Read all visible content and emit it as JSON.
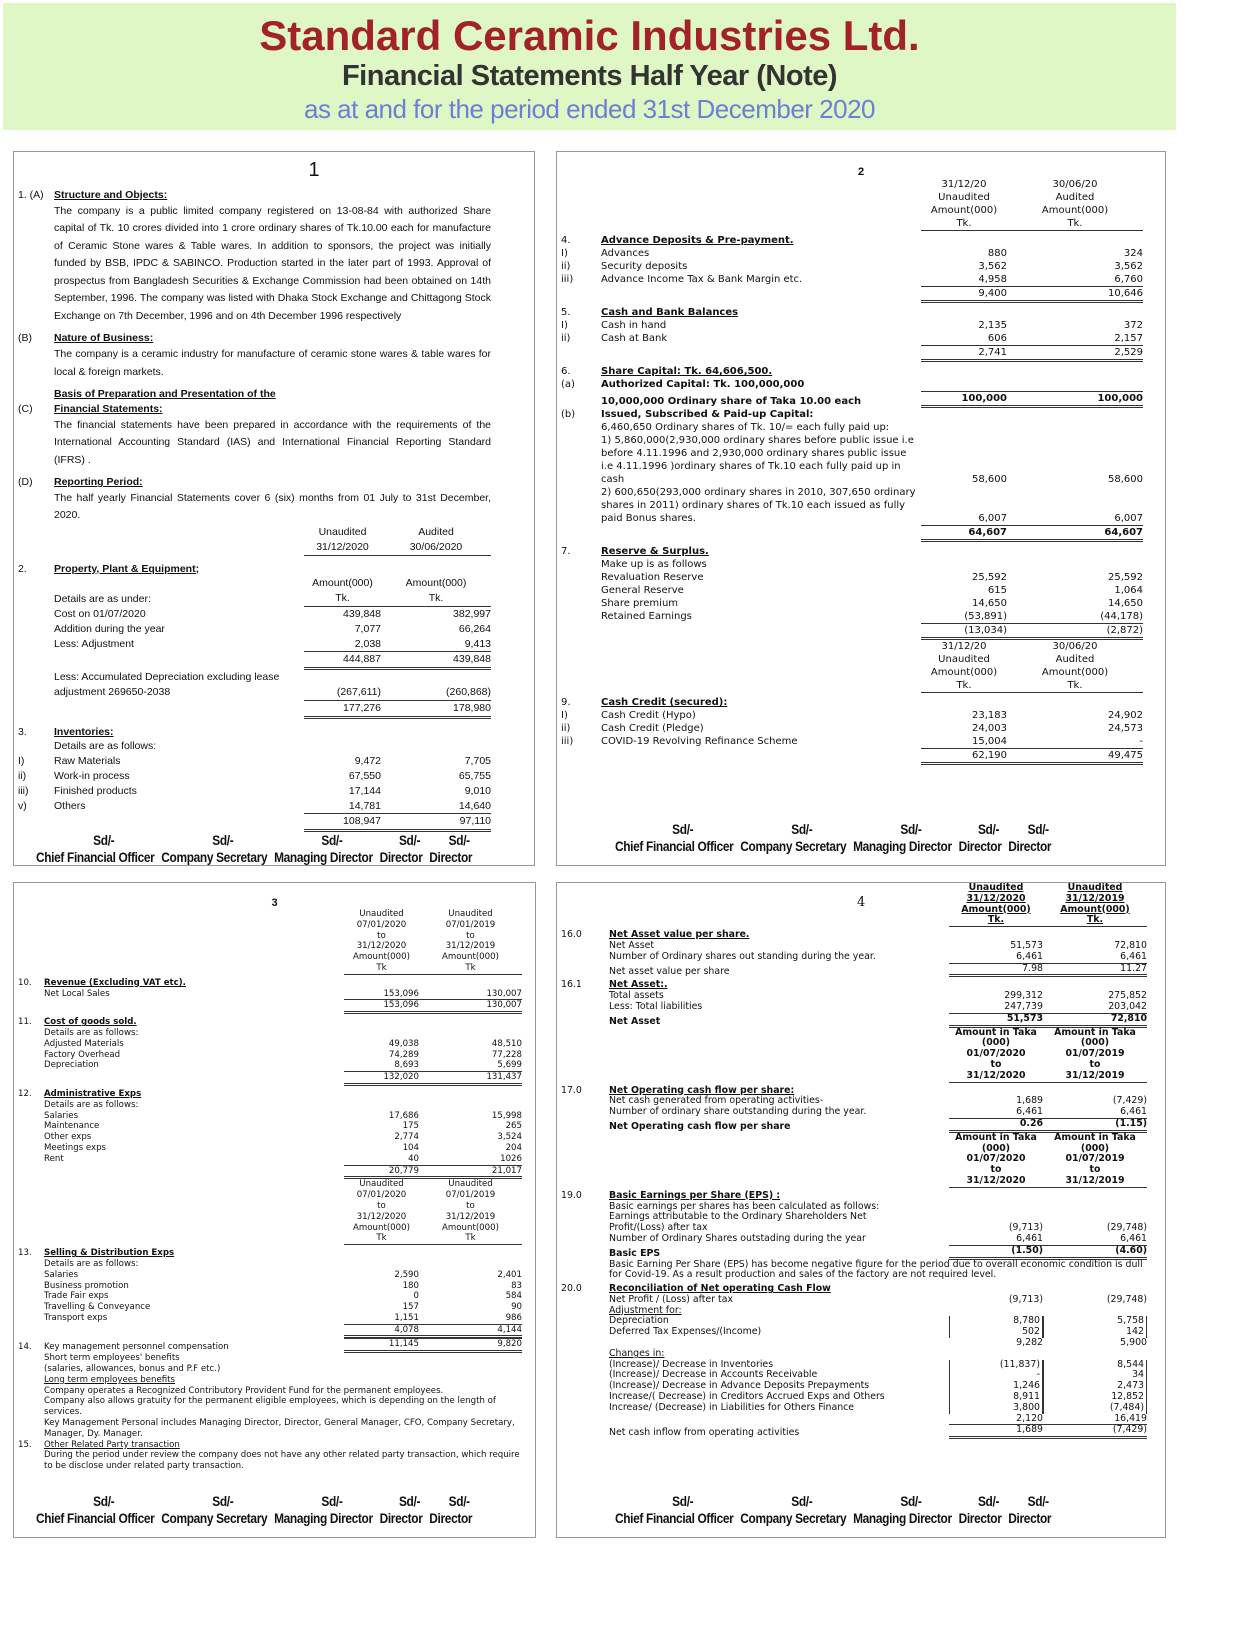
{
  "header": {
    "company": "Standard Ceramic Industries Ltd.",
    "title": "Financial Statements Half Year (Note)",
    "period": "as at and for the period ended 31st December 2020"
  },
  "colors": {
    "header_bg": "#dff7c4",
    "company": "#a3222a",
    "period": "#6b7fd7"
  },
  "signatures": {
    "sd": "Sd/-",
    "titles": [
      "Chief Financial Officer",
      "Company Secretary",
      "Managing Director",
      "Director",
      "Director"
    ]
  },
  "panels": [
    {
      "page": "1",
      "rows": [
        {
          "k": "head",
          "n": "1.  (A)",
          "t": "Structure and Objects:"
        },
        {
          "k": "para",
          "t": "The company is a public limited company registered on 13-08-84 with authorized Share capital of Tk. 10 crores divided into 1 crore ordinary shares of Tk.10.00 each for manufacture of Ceramic Stone wares & Table wares. In addition to sponsors, the project was initially funded by BSB, IPDC & SABINCO. Production started in the later part of 1993. Approval of prospectus from Bangladesh Securities & Exchange Commission had been obtained on 14th September, 1996. The company was listed with Dhaka Stock Exchange and Chittagong Stock Exchange on 7th December, 1996 and on 4th December 1996 respectively"
        },
        {
          "k": "head",
          "n": "     (B)",
          "t": "Nature of Business:"
        },
        {
          "k": "para",
          "t": "The company is a ceramic industry for manufacture of ceramic stone wares & table wares for local & foreign markets."
        },
        {
          "k": "head",
          "n": "     (C)",
          "t": "Basis of Preparation and Presentation  of the Financial Statements:"
        },
        {
          "k": "para",
          "t": "The financial statements have been prepared in accordance with the requirements of the International Accounting Standard (IAS) and International Financial Reporting Standard (IFRS) ."
        },
        {
          "k": "head",
          "n": "     (D)",
          "t": "Reporting Period:"
        },
        {
          "k": "para",
          "t": "The  half yearly Financial Statements cover 6 (six) months from 01 July to 31st  December, 2020."
        },
        {
          "k": "colhead",
          "a": [
            "Unaudited",
            "31/12/2020"
          ],
          "b": [
            "Audited",
            "30/06/2020"
          ]
        },
        {
          "k": "head",
          "n": "2.",
          "t": "Property, Plant & Equipment;"
        },
        {
          "k": "colhead",
          "t": "Details are as under:",
          "a": [
            "Amount(000)",
            "Tk."
          ],
          "b": [
            "Amount(000)",
            "Tk."
          ]
        },
        {
          "t": "Cost on 01/07/2020",
          "a": "439,848",
          "b": "382,997"
        },
        {
          "t": "Addition during the year",
          "a": "7,077",
          "b": "66,264"
        },
        {
          "t": "Less: Adjustment",
          "a": "2,038",
          "b": "9,413"
        },
        {
          "k": "total",
          "a": "444,887",
          "b": "439,848"
        },
        {
          "t": "Less: Accumulated Depreciation                   excluding lease adjustment  269650-2038",
          "a": "(267,611)",
          "b": "(260,868)"
        },
        {
          "k": "total",
          "a": "177,276",
          "b": "178,980"
        },
        {
          "k": "head",
          "n": "3.",
          "t": "Inventories: "
        },
        {
          "t": "Details are as follows:"
        },
        {
          "n": "I)",
          "t": "Raw Materials",
          "a": "9,472",
          "b": "7,705"
        },
        {
          "n": "ii)",
          "t": "Work-in process",
          "a": "67,550",
          "b": "65,755"
        },
        {
          "n": "iii)",
          "t": "Finished products",
          "a": "17,144",
          "b": "9,010"
        },
        {
          "n": "v)",
          "t": "Others",
          "a": "14,781",
          "b": "14,640"
        },
        {
          "k": "total",
          "a": "108,947",
          "b": "97,110"
        }
      ]
    },
    {
      "page": "2",
      "rows": [
        {
          "k": "colhead",
          "a": [
            "31/12/20",
            "Unaudited",
            "Amount(000)",
            "Tk."
          ],
          "b": [
            "30/06/20",
            "Audited",
            "Amount(000)",
            "Tk."
          ]
        },
        {
          "k": "head",
          "n": "4.",
          "t": "Advance Deposits & Pre-payment."
        },
        {
          "n": "I)",
          "t": "Advances",
          "a": "880",
          "b": "324"
        },
        {
          "n": "ii)",
          "t": "Security deposits",
          "a": "3,562",
          "b": "3,562"
        },
        {
          "n": "iii)",
          "t": "Advance Income Tax & Bank Margin etc.",
          "a": "4,958",
          "b": "6,760"
        },
        {
          "k": "total",
          "a": "9,400",
          "b": "10,646"
        },
        {
          "k": "head",
          "n": "5.",
          "t": "Cash and Bank Balances"
        },
        {
          "n": "I)",
          "t": "Cash in hand",
          "a": "2,135",
          "b": "372"
        },
        {
          "n": "ii)",
          "t": "Cash at Bank",
          "a": "606",
          "b": "2,157"
        },
        {
          "k": "total",
          "a": "2,741",
          "b": "2,529"
        },
        {
          "k": "head",
          "n": "6.",
          "t": "Share Capital: Tk. 64,606,500."
        },
        {
          "k": "bold",
          "n": "  (a)",
          "t": "Authorized Capital: Tk. 100,000,000"
        },
        {
          "k": "bold total",
          "t": "10,000,000 Ordinary share of Taka 10.00 each",
          "a": "100,000",
          "b": "100,000"
        },
        {
          "k": "bold",
          "n": "  (b)",
          "t": "Issued, Subscribed & Paid-up Capital:"
        },
        {
          "t": "6,460,650 Ordinary shares of Tk. 10/= each fully paid up:"
        },
        {
          "t": "1) 5,860,000(2,930,000 ordinary shares before public issue i.e before 4.11.1996 and 2,930,000 ordinary shares public issue i.e 4.11.1996 )ordinary shares of Tk.10 each fully paid up in cash",
          "a": "58,600",
          "b": "58,600"
        },
        {
          "t": "2) 600,650(293,000 ordinary shares in 2010, 307,650 ordinary shares in 2011) ordinary shares of Tk.10 each issued as fully paid Bonus shares.",
          "a": "6,007",
          "b": "6,007"
        },
        {
          "k": "bold total",
          "a": "64,607",
          "b": "64,607"
        },
        {
          "k": "head",
          "n": "7.",
          "t": "Reserve & Surplus."
        },
        {
          "t": "Make up is as follows"
        },
        {
          "t": "Revaluation Reserve",
          "a": "25,592",
          "b": "25,592"
        },
        {
          "t": "General Reserve",
          "a": "615",
          "b": "1,064"
        },
        {
          "t": "Share premium",
          "a": "14,650",
          "b": "14,650"
        },
        {
          "t": "Retained Earnings",
          "a": "(53,891)",
          "b": "(44,178)"
        },
        {
          "k": "total",
          "a": "(13,034)",
          "b": "(2,872)"
        },
        {
          "k": "colhead",
          "a": [
            "31/12/20",
            "Unaudited",
            "Amount(000)",
            "Tk."
          ],
          "b": [
            "30/06/20",
            "Audited",
            "Amount(000)",
            "Tk."
          ]
        },
        {
          "k": "head",
          "n": "9.",
          "t": "Cash Credit (secured):"
        },
        {
          "n": "I)",
          "t": "Cash Credit (Hypo)",
          "a": "23,183",
          "b": "24,902"
        },
        {
          "n": "ii)",
          "t": "Cash Credit (Pledge)",
          "a": "24,003",
          "b": "24,573"
        },
        {
          "n": "iii)",
          "t": "COVID-19 Revolving Refinance Scheme",
          "a": "15,004",
          "b": "-"
        },
        {
          "k": "total",
          "a": "62,190",
          "b": "49,475"
        }
      ]
    },
    {
      "page": "3",
      "rows": [
        {
          "k": "colhead",
          "a": [
            "Unaudited",
            "07/01/2020",
            "to",
            "31/12/2020",
            "Amount(000)",
            "Tk"
          ],
          "b": [
            "Unaudited",
            "07/01/2019",
            "to",
            "31/12/2019",
            "Amount(000)",
            "Tk"
          ]
        },
        {
          "k": "head",
          "n": "10.",
          "t": "Revenue (Excluding VAT etc)."
        },
        {
          "t": "Net Local Sales",
          "a": "153,096",
          "b": "130,007"
        },
        {
          "k": "total",
          "a": "153,096",
          "b": "130,007"
        },
        {
          "k": "head",
          "n": "11.",
          "t": "Cost of goods sold."
        },
        {
          "t": "Details are as follows:"
        },
        {
          "t": "Adjusted Materials",
          "a": "49,038",
          "b": "48,510"
        },
        {
          "t": "Factory Overhead",
          "a": "74,289",
          "b": "77,228"
        },
        {
          "t": "Depreciation",
          "a": "8,693",
          "b": "5,699"
        },
        {
          "k": "total",
          "a": "132,020",
          "b": "131,437"
        },
        {
          "k": "head",
          "n": "12.",
          "t": "Administrative Exps"
        },
        {
          "t": "Details are as follows:"
        },
        {
          "t": "Salaries",
          "a": "17,686",
          "b": "15,998"
        },
        {
          "t": "Maintenance",
          "a": "175",
          "b": "265"
        },
        {
          "t": "Other exps",
          "a": "2,774",
          "b": "3,524"
        },
        {
          "t": "Meetings exps",
          "a": "104",
          "b": "204"
        },
        {
          "t": "Rent",
          "a": "40",
          "b": "1026"
        },
        {
          "k": "total",
          "a": "20,779",
          "b": "21,017"
        },
        {
          "k": "colhead",
          "a": [
            "Unaudited",
            "07/01/2020",
            "to",
            "31/12/2020",
            "Amount(000)",
            "Tk"
          ],
          "b": [
            "Unaudited",
            "07/01/2019",
            "to",
            "31/12/2019",
            "Amount(000)",
            "Tk"
          ]
        },
        {
          "k": "head",
          "n": "13.",
          "t": "Selling & Distribution  Exps"
        },
        {
          "t": "Details are as follows:"
        },
        {
          "t": "Salaries",
          "a": "2,590",
          "b": "2,401"
        },
        {
          "t": "Business promotion",
          "a": "180",
          "b": "83"
        },
        {
          "t": "Trade Fair exps",
          "a": "0",
          "b": "584"
        },
        {
          "t": "Travelling & Conveyance",
          "a": "157",
          "b": "90"
        },
        {
          "t": "Transport exps",
          "a": "1,151",
          "b": "986"
        },
        {
          "k": "total",
          "a": "4,078",
          "b": "4,144"
        },
        {
          "k": "total",
          "n": "14.",
          "t": "Key management personnel compensation",
          "a": "11,145",
          "b": "9,820"
        },
        {
          "t": "Short term employees' benefits"
        },
        {
          "t": "(salaries, allowances, bonus and P.F etc.)"
        },
        {
          "k": "ul",
          "t": "Long term employees benefits"
        },
        {
          "k": "para",
          "t": "Company operates a Recognized Contributory Provident Fund for the permanent employees."
        },
        {
          "k": "para",
          "t": "Company also allows gratuity for the permanent eligible employees, which is depending on the length of services."
        },
        {
          "k": "para",
          "t": "Key Management Personal includes Managing Director, Director, General Manager, CFO, Company Secretary, Manager, Dy. Manager."
        },
        {
          "k": "ul",
          "n": "15.",
          "t": "Other Related Party transaction"
        },
        {
          "k": "para",
          "t": "During the period under review the company does not have any other related party transaction, which require to be disclose under related party transaction."
        }
      ]
    },
    {
      "page": "4",
      "rows": [
        {
          "k": "colhead u",
          "a": [
            "Unaudited",
            "31/12/2020",
            "Amount(000)",
            "Tk."
          ],
          "b": [
            "Unaudited",
            "31/12/2019",
            "Amount(000)",
            "Tk."
          ]
        },
        {
          "k": "head",
          "n": "16.0",
          "t": "Net Asset value per share."
        },
        {
          "t": "Net Asset",
          "a": "51,573",
          "b": "72,810"
        },
        {
          "t": "Number of Ordinary shares out standing during the year.",
          "a": "6,461",
          "b": "6,461"
        },
        {
          "k": "total",
          "t": "Net asset value per share",
          "a": "7.98",
          "b": "11.27"
        },
        {
          "k": "head",
          "n": "16.1",
          "t": "Net Asset:."
        },
        {
          "t": "Total assets",
          "a": "299,312",
          "b": "275,852"
        },
        {
          "t": "Less: Total liabilities",
          "a": "247,739",
          "b": "203,042"
        },
        {
          "k": "bold total",
          "t": "Net Asset",
          "a": "51,573",
          "b": "72,810"
        },
        {
          "k": "colhead",
          "a": [
            "Amount in Taka",
            "(000)",
            "01/07/2020",
            "to",
            "31/12/2020"
          ],
          "b": [
            "Amount in Taka",
            "(000)",
            "01/07/2019",
            "to",
            "31/12/2019"
          ]
        },
        {
          "k": "head",
          "n": "17.0",
          "t": "Net Operating cash flow per share:"
        },
        {
          "t": "Net cash generated from operating activities-",
          "a": "1,689",
          "b": "(7,429)"
        },
        {
          "t": "Number of ordinary share outstanding during the year.",
          "a": "6,461",
          "b": "6,461"
        },
        {
          "k": "bold total",
          "t": "Net Operating cash flow per share",
          "a": "0.26",
          "b": "(1.15)"
        },
        {
          "k": "colhead",
          "a": [
            "Amount in Taka",
            "(000)",
            "01/07/2020",
            "to",
            "31/12/2020"
          ],
          "b": [
            "Amount in Taka",
            "(000)",
            "01/07/2019",
            "to",
            "31/12/2019"
          ]
        },
        {
          "k": "head",
          "n": "19.0",
          "t": "Basic Earnings per Share (EPS) :"
        },
        {
          "t": "Basic earnings per shares has been calculated as follows:"
        },
        {
          "t": "Earnings attributable to the Ordinary Shareholders Net"
        },
        {
          "t": "Profit/(Loss) after tax",
          "a": "(9,713)",
          "b": "(29,748)"
        },
        {
          "t": "Number of Ordinary Shares outstading during the year",
          "a": "6,461",
          "b": "6,461"
        },
        {
          "k": "bold total",
          "t": "Basic EPS",
          "a": "(1.50)",
          "b": "(4.60)"
        },
        {
          "k": "para",
          "t": "Basic Earning Per Share (EPS)  has become negative figure for the period due to overall economic condition  is dull  for Covid-19. As a result production  and sales of the factory  are not required level."
        },
        {
          "k": "head",
          "n": "20.0",
          "t": "Reconciliation of Net operating Cash Flow"
        },
        {
          "t": "Net Profit / (Loss) after tax",
          "a": "(9,713)",
          "b": "(29,748)"
        },
        {
          "k": "ul",
          "t": "Adjustment for:"
        },
        {
          "k": "boxed",
          "t": "Depreciation",
          "a": "8,780",
          "b": "5,758"
        },
        {
          "k": "boxed",
          "t": "Deferred Tax Expenses/(Income)",
          "a": "502",
          "b": "142"
        },
        {
          "t": "",
          "a": "9,282",
          "b": "5,900"
        },
        {
          "k": "ul",
          "t": "Changes in:"
        },
        {
          "k": "boxed",
          "t": "(Increase)/ Decrease in Inventories",
          "a": "(11,837)",
          "b": "8,544"
        },
        {
          "k": "boxed",
          "t": "(Increase)/ Decrease in Accounts Receivable",
          "a": "-",
          "b": "34"
        },
        {
          "k": "boxed",
          "t": "(Increase)/ Decrease in Advance Deposits Prepayments",
          "a": "1,246",
          "b": "2,473"
        },
        {
          "k": "boxed",
          "t": "Increase/( Decrease) in Creditors Accrued Exps and Others",
          "a": "8,911",
          "b": "12,852"
        },
        {
          "k": "boxed",
          "t": "Increase/ (Decrease) in Liabilities for Others Finance",
          "a": "3,800",
          "b": "(7,484)"
        },
        {
          "t": "",
          "a": "2,120",
          "b": "16,419"
        },
        {
          "k": "total",
          "t": "Net cash inflow from operating activities",
          "a": "1,689",
          "b": "(7,429)"
        }
      ]
    }
  ]
}
